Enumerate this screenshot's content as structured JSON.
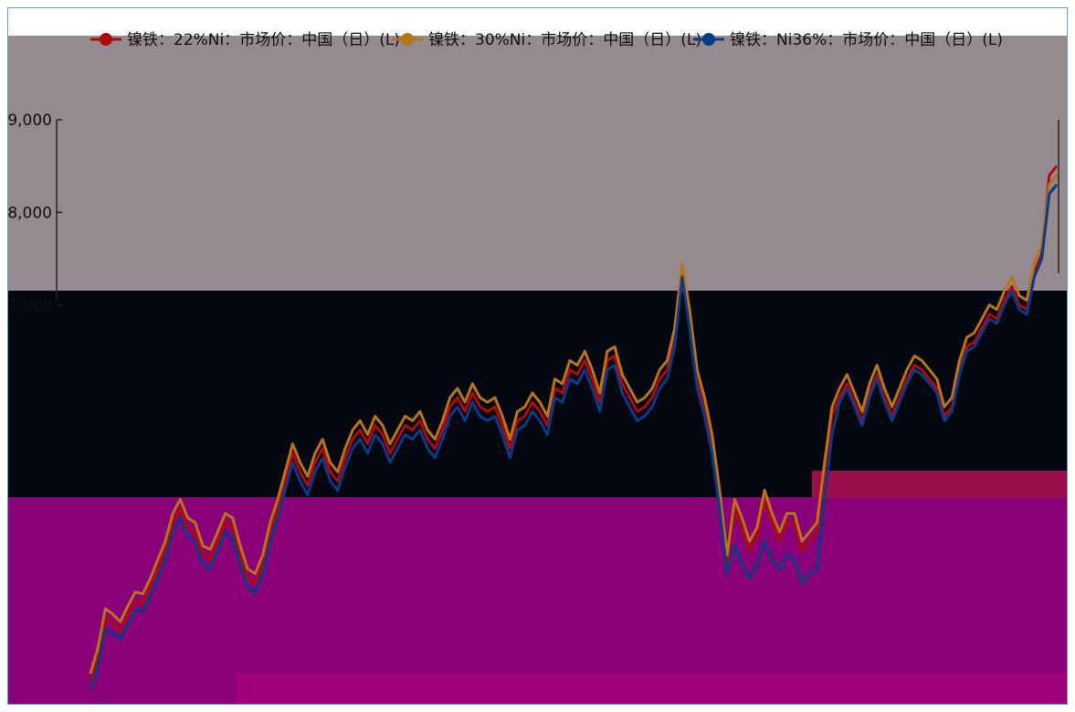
{
  "colors": {
    "plot_bg": "#958a8f",
    "band_dark": "#03070f",
    "band_magenta": "#890078",
    "band_crimson": "#9a0e49",
    "series_22": "#b10909",
    "series_30": "#b8741a",
    "series_36": "#0a3a8a"
  },
  "chart_data": {
    "type": "line",
    "title": "",
    "xlabel": "",
    "ylabel": "",
    "ylim": [
      3000,
      9000
    ],
    "y_ticks": [
      {
        "value": 9000,
        "label": "9,000"
      },
      {
        "value": 8000,
        "label": "8,000"
      },
      {
        "value": 7000,
        "label": "7,000"
      }
    ],
    "legend_position": "top",
    "x": [
      0,
      1,
      2,
      3,
      4,
      5,
      6,
      7,
      8,
      9,
      10,
      11,
      12,
      13,
      14,
      15,
      16,
      17,
      18,
      19,
      20,
      21,
      22,
      23,
      24,
      25,
      26,
      27,
      28,
      29,
      30,
      31,
      32,
      33,
      34,
      35,
      36,
      37,
      38,
      39,
      40,
      41,
      42,
      43,
      44,
      45,
      46,
      47,
      48,
      49,
      50,
      51,
      52,
      53,
      54,
      55,
      56,
      57,
      58,
      59,
      60,
      61,
      62,
      63,
      64,
      65,
      66,
      67,
      68,
      69,
      70,
      71,
      72,
      73,
      74,
      75,
      76,
      77,
      78,
      79,
      80,
      81,
      82,
      83,
      84,
      85,
      86,
      87,
      88,
      89,
      90,
      91,
      92,
      93,
      94,
      95,
      96,
      97,
      98,
      99,
      100,
      101,
      102,
      103,
      104,
      105,
      106,
      107,
      108,
      109,
      110,
      111,
      112,
      113,
      114,
      115,
      116,
      117,
      118,
      119,
      120,
      121,
      122,
      123,
      124,
      125,
      126,
      127,
      128,
      129
    ],
    "series": [
      {
        "name": "镍铁：22%Ni：市场价：中国（日）(L)",
        "color": "#b10909",
        "values": [
          2920,
          3200,
          3620,
          3560,
          3480,
          3650,
          3800,
          3780,
          3950,
          4150,
          4350,
          4650,
          4800,
          4600,
          4550,
          4300,
          4260,
          4450,
          4650,
          4600,
          4300,
          4050,
          4000,
          4200,
          4550,
          4800,
          5100,
          5400,
          5200,
          5050,
          5300,
          5450,
          5200,
          5100,
          5350,
          5550,
          5650,
          5500,
          5700,
          5600,
          5400,
          5550,
          5700,
          5650,
          5750,
          5550,
          5450,
          5650,
          5900,
          6000,
          5850,
          6050,
          5900,
          5850,
          5900,
          5700,
          5450,
          5750,
          5800,
          5950,
          5850,
          5700,
          6100,
          6050,
          6300,
          6250,
          6400,
          6200,
          5950,
          6400,
          6450,
          6150,
          6000,
          5850,
          5900,
          6000,
          6200,
          6300,
          6650,
          7400,
          6850,
          6200,
          5900,
          5500,
          4900,
          4200,
          4800,
          4600,
          4350,
          4500,
          4900,
          4650,
          4450,
          4650,
          4650,
          4350,
          4450,
          4550,
          5200,
          5800,
          6000,
          6150,
          5950,
          5750,
          6050,
          6250,
          6000,
          5800,
          6000,
          6200,
          6350,
          6300,
          6200,
          6100,
          5800,
          5900,
          6300,
          6550,
          6600,
          6750,
          6900,
          6850,
          7050,
          7200,
          7000,
          6950,
          7350,
          7550,
          8400,
          8500
        ]
      },
      {
        "name": "镍铁：30%Ni：市场价：中国（日）(L)",
        "color": "#b8741a",
        "values": [
          3020,
          3300,
          3720,
          3660,
          3580,
          3750,
          3900,
          3880,
          4050,
          4250,
          4450,
          4750,
          4900,
          4700,
          4650,
          4400,
          4360,
          4550,
          4750,
          4700,
          4400,
          4150,
          4100,
          4300,
          4650,
          4900,
          5200,
          5500,
          5300,
          5150,
          5400,
          5550,
          5300,
          5200,
          5450,
          5650,
          5750,
          5600,
          5800,
          5700,
          5500,
          5650,
          5800,
          5750,
          5850,
          5650,
          5550,
          5750,
          6000,
          6100,
          5950,
          6150,
          6000,
          5950,
          6000,
          5800,
          5550,
          5850,
          5900,
          6050,
          5950,
          5800,
          6200,
          6150,
          6400,
          6350,
          6500,
          6300,
          6050,
          6500,
          6550,
          6250,
          6100,
          5950,
          6000,
          6100,
          6300,
          6400,
          6750,
          7450,
          6950,
          6300,
          6000,
          5600,
          5000,
          4300,
          4900,
          4700,
          4450,
          4600,
          5000,
          4750,
          4550,
          4750,
          4750,
          4450,
          4550,
          4650,
          5300,
          5900,
          6100,
          6250,
          6050,
          5850,
          6150,
          6350,
          6100,
          5900,
          6100,
          6300,
          6450,
          6400,
          6300,
          6200,
          5900,
          6000,
          6400,
          6650,
          6700,
          6850,
          7000,
          6950,
          7150,
          7300,
          7100,
          7050,
          7450,
          7650,
          8300,
          8400
        ]
      },
      {
        "name": "镍铁：Ni36%：市场价：中国（日）(L)",
        "color": "#0a3a8a",
        "values": [
          2850,
          3100,
          3500,
          3450,
          3400,
          3550,
          3700,
          3700,
          3850,
          4050,
          4250,
          4550,
          4700,
          4500,
          4450,
          4200,
          4150,
          4350,
          4550,
          4500,
          4200,
          3950,
          3900,
          4100,
          4450,
          4700,
          5000,
          5300,
          5100,
          4950,
          5200,
          5350,
          5100,
          5000,
          5250,
          5450,
          5550,
          5400,
          5600,
          5500,
          5300,
          5450,
          5600,
          5550,
          5650,
          5450,
          5350,
          5550,
          5800,
          5900,
          5750,
          5950,
          5800,
          5750,
          5800,
          5600,
          5350,
          5650,
          5700,
          5850,
          5750,
          5600,
          6000,
          5950,
          6200,
          6150,
          6300,
          6100,
          5850,
          6300,
          6350,
          6050,
          5900,
          5750,
          5800,
          5900,
          6100,
          6200,
          6550,
          7300,
          6750,
          6100,
          5800,
          5400,
          4800,
          4100,
          4400,
          4200,
          4050,
          4200,
          4450,
          4250,
          4150,
          4300,
          4250,
          4000,
          4100,
          4150,
          4900,
          5600,
          5950,
          6100,
          5900,
          5700,
          6000,
          6200,
          5950,
          5750,
          5950,
          6150,
          6300,
          6250,
          6150,
          6050,
          5750,
          5850,
          6250,
          6500,
          6550,
          6700,
          6850,
          6800,
          7000,
          7150,
          6950,
          6900,
          7300,
          7500,
          8200,
          8300
        ]
      }
    ]
  }
}
